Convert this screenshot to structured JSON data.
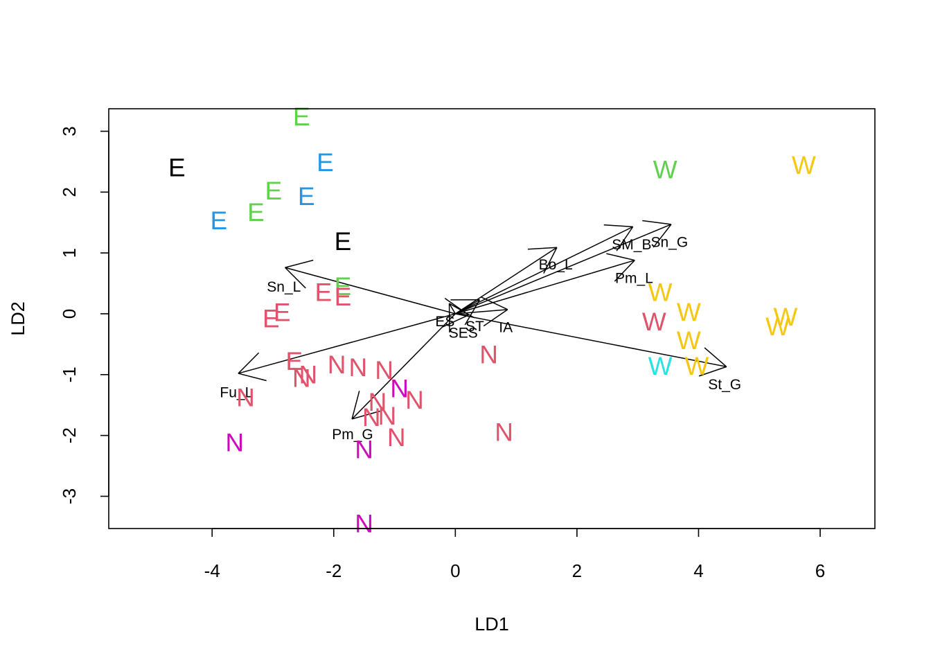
{
  "chart_data": {
    "type": "scatter",
    "title": "",
    "xlabel": "LD1",
    "ylabel": "LD2",
    "xlim": [
      -5.7,
      6.9
    ],
    "ylim": [
      -3.53,
      3.37
    ],
    "x_ticks": [
      "-4",
      "-2",
      "0",
      "2",
      "4",
      "6"
    ],
    "y_ticks": [
      "-3",
      "-2",
      "-1",
      "0",
      "1",
      "2",
      "3"
    ],
    "grid": false,
    "legend": "none",
    "colors": {
      "black": "#000000",
      "green": "#61D04F",
      "blue": "#2297E6",
      "red": "#DF536B",
      "magenta": "#CD0BBC",
      "cyan": "#28E2E5",
      "yellow": "#F5C710"
    },
    "points": [
      {
        "x": -4.58,
        "y": 2.4,
        "label": "E",
        "color": "#000000"
      },
      {
        "x": -1.85,
        "y": 1.19,
        "label": "E",
        "color": "#000000"
      },
      {
        "x": -2.53,
        "y": 3.24,
        "label": "E",
        "color": "#61D04F"
      },
      {
        "x": -2.99,
        "y": 2.02,
        "label": "E",
        "color": "#61D04F"
      },
      {
        "x": -3.28,
        "y": 1.67,
        "label": "E",
        "color": "#61D04F"
      },
      {
        "x": -1.85,
        "y": 0.45,
        "label": "E",
        "color": "#61D04F"
      },
      {
        "x": -2.14,
        "y": 2.49,
        "label": "E",
        "color": "#2297E6"
      },
      {
        "x": -2.45,
        "y": 1.93,
        "label": "E",
        "color": "#2297E6"
      },
      {
        "x": -3.89,
        "y": 1.53,
        "label": "E",
        "color": "#2297E6"
      },
      {
        "x": -2.17,
        "y": 0.35,
        "label": "E",
        "color": "#DF536B"
      },
      {
        "x": -1.85,
        "y": 0.28,
        "label": "E",
        "color": "#DF536B"
      },
      {
        "x": -2.85,
        "y": 0.02,
        "label": "E",
        "color": "#DF536B"
      },
      {
        "x": -3.03,
        "y": -0.08,
        "label": "E",
        "color": "#DF536B"
      },
      {
        "x": -2.65,
        "y": -0.78,
        "label": "E",
        "color": "#DF536B"
      },
      {
        "x": -2.53,
        "y": -1.06,
        "label": "N",
        "color": "#DF536B"
      },
      {
        "x": -2.42,
        "y": -1.0,
        "label": "N",
        "color": "#DF536B"
      },
      {
        "x": -1.95,
        "y": -0.84,
        "label": "N",
        "color": "#DF536B"
      },
      {
        "x": -1.6,
        "y": -0.88,
        "label": "N",
        "color": "#DF536B"
      },
      {
        "x": -1.17,
        "y": -0.93,
        "label": "N",
        "color": "#DF536B"
      },
      {
        "x": -3.45,
        "y": -1.38,
        "label": "N",
        "color": "#DF536B"
      },
      {
        "x": -1.28,
        "y": -1.45,
        "label": "N",
        "color": "#DF536B"
      },
      {
        "x": -1.38,
        "y": -1.7,
        "label": "N",
        "color": "#DF536B"
      },
      {
        "x": -1.12,
        "y": -1.68,
        "label": "N",
        "color": "#DF536B"
      },
      {
        "x": -0.67,
        "y": -1.42,
        "label": "N",
        "color": "#DF536B"
      },
      {
        "x": -0.97,
        "y": -2.03,
        "label": "N",
        "color": "#DF536B"
      },
      {
        "x": 0.55,
        "y": -0.67,
        "label": "N",
        "color": "#DF536B"
      },
      {
        "x": 0.8,
        "y": -1.95,
        "label": "N",
        "color": "#DF536B"
      },
      {
        "x": -0.92,
        "y": -1.23,
        "label": "N",
        "color": "#CD0BBC"
      },
      {
        "x": -3.63,
        "y": -2.12,
        "label": "N",
        "color": "#CD0BBC"
      },
      {
        "x": -1.5,
        "y": -2.23,
        "label": "N",
        "color": "#CD0BBC"
      },
      {
        "x": -1.5,
        "y": -3.45,
        "label": "N",
        "color": "#CD0BBC"
      },
      {
        "x": 3.45,
        "y": 2.37,
        "label": "W",
        "color": "#61D04F"
      },
      {
        "x": 5.73,
        "y": 2.44,
        "label": "W",
        "color": "#F5C710"
      },
      {
        "x": 3.37,
        "y": 0.35,
        "label": "W",
        "color": "#F5C710"
      },
      {
        "x": 3.84,
        "y": 0.03,
        "label": "W",
        "color": "#F5C710"
      },
      {
        "x": 5.43,
        "y": -0.05,
        "label": "W",
        "color": "#F5C710"
      },
      {
        "x": 5.3,
        "y": -0.21,
        "label": "W",
        "color": "#F5C710"
      },
      {
        "x": 3.84,
        "y": -0.44,
        "label": "W",
        "color": "#F5C710"
      },
      {
        "x": 3.97,
        "y": -0.86,
        "label": "W",
        "color": "#F5C710"
      },
      {
        "x": 3.27,
        "y": -0.13,
        "label": "W",
        "color": "#DF536B"
      },
      {
        "x": 3.37,
        "y": -0.86,
        "label": "W",
        "color": "#28E2E5"
      }
    ],
    "arrows": [
      {
        "label": "Sn_L",
        "x": -2.8,
        "y": 0.76,
        "lx": -2.82,
        "ly": 0.44
      },
      {
        "label": "Fu_L",
        "x": -3.57,
        "y": -0.98,
        "lx": -3.6,
        "ly": -1.3
      },
      {
        "label": "Pm_G",
        "x": -1.7,
        "y": -1.73,
        "lx": -1.69,
        "ly": -1.99
      },
      {
        "label": "Bo_L",
        "x": 1.67,
        "y": 1.09,
        "lx": 1.65,
        "ly": 0.8
      },
      {
        "label": "SM_B",
        "x": 2.92,
        "y": 1.43,
        "lx": 2.9,
        "ly": 1.13
      },
      {
        "label": "Sn_G",
        "x": 3.55,
        "y": 1.47,
        "lx": 3.52,
        "ly": 1.17
      },
      {
        "label": "Pm_L",
        "x": 2.95,
        "y": 0.88,
        "lx": 2.94,
        "ly": 0.58
      },
      {
        "label": "St_G",
        "x": 4.46,
        "y": -0.87,
        "lx": 4.43,
        "ly": -1.17
      },
      {
        "label": "ES",
        "x": -0.1,
        "y": 0.17,
        "lx": -0.17,
        "ly": -0.13
      },
      {
        "label": "SES",
        "x": 0.22,
        "y": -0.02,
        "lx": 0.13,
        "ly": -0.32
      },
      {
        "label": "ST",
        "x": 0.4,
        "y": 0.23,
        "lx": 0.32,
        "ly": -0.21
      },
      {
        "label": "IA",
        "x": 0.86,
        "y": 0.07,
        "lx": 0.83,
        "ly": -0.23
      }
    ]
  }
}
